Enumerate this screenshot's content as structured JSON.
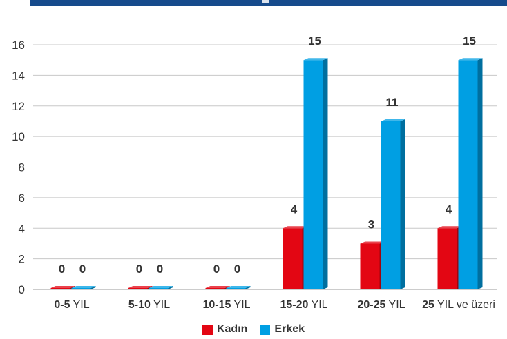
{
  "chart_data": {
    "type": "bar",
    "categories": [
      {
        "bold": "0-5",
        "rest": " YIL"
      },
      {
        "bold": "5-10",
        "rest": " YIL"
      },
      {
        "bold": "10-15",
        "rest": " YIL"
      },
      {
        "bold": "15-20",
        "rest": " YIL"
      },
      {
        "bold": "20-25",
        "rest": " YIL"
      },
      {
        "bold": "25",
        "rest": " YIL ve üzeri"
      }
    ],
    "series": [
      {
        "name": "Kadın",
        "color": "#e30613",
        "values": [
          0,
          0,
          0,
          4,
          3,
          4
        ]
      },
      {
        "name": "Erkek",
        "color": "#009fe3",
        "values": [
          0,
          0,
          0,
          15,
          11,
          15
        ]
      }
    ],
    "ylim": [
      0,
      16
    ],
    "yticks": [
      "0",
      "2",
      "4",
      "6",
      "8",
      "10",
      "12",
      "14",
      "16"
    ],
    "grid": true,
    "legend_position": "bottom-center",
    "bar_style": "3d"
  },
  "legend": {
    "kadin": "Kadın",
    "erkek": "Erkek",
    "kadin_color": "#e30613",
    "erkek_color": "#009fe3"
  }
}
